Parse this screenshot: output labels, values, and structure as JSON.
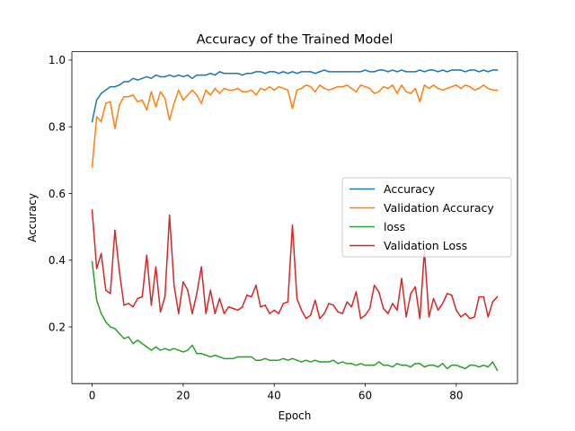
{
  "chart_data": {
    "type": "line",
    "title": "Accuracy of the Trained Model",
    "xlabel": "Epoch",
    "ylabel": "Accuracy",
    "xlim": [
      -4.45,
      93.45
    ],
    "ylim": [
      0.03,
      1.025
    ],
    "xticks": [
      0,
      20,
      40,
      60,
      80
    ],
    "yticks": [
      0.2,
      0.4,
      0.6,
      0.8,
      1.0
    ],
    "ytick_labels": [
      "0.2",
      "0.4",
      "0.6",
      "0.8",
      "1.0"
    ],
    "legend_position": "center-right",
    "grid": false,
    "x": [
      0,
      1,
      2,
      3,
      4,
      5,
      6,
      7,
      8,
      9,
      10,
      11,
      12,
      13,
      14,
      15,
      16,
      17,
      18,
      19,
      20,
      21,
      22,
      23,
      24,
      25,
      26,
      27,
      28,
      29,
      30,
      31,
      32,
      33,
      34,
      35,
      36,
      37,
      38,
      39,
      40,
      41,
      42,
      43,
      44,
      45,
      46,
      47,
      48,
      49,
      50,
      51,
      52,
      53,
      54,
      55,
      56,
      57,
      58,
      59,
      60,
      61,
      62,
      63,
      64,
      65,
      66,
      67,
      68,
      69,
      70,
      71,
      72,
      73,
      74,
      75,
      76,
      77,
      78,
      79,
      80,
      81,
      82,
      83,
      84,
      85,
      86,
      87,
      88,
      89
    ],
    "series": [
      {
        "name": "Accuracy",
        "color": "#1f77b4",
        "values": [
          0.815,
          0.88,
          0.9,
          0.91,
          0.92,
          0.92,
          0.925,
          0.935,
          0.935,
          0.945,
          0.94,
          0.945,
          0.95,
          0.945,
          0.955,
          0.95,
          0.95,
          0.955,
          0.95,
          0.955,
          0.95,
          0.955,
          0.945,
          0.955,
          0.955,
          0.955,
          0.96,
          0.955,
          0.965,
          0.96,
          0.96,
          0.96,
          0.96,
          0.955,
          0.96,
          0.96,
          0.965,
          0.965,
          0.96,
          0.965,
          0.965,
          0.96,
          0.965,
          0.96,
          0.965,
          0.96,
          0.965,
          0.965,
          0.965,
          0.96,
          0.965,
          0.97,
          0.965,
          0.965,
          0.965,
          0.965,
          0.965,
          0.965,
          0.965,
          0.965,
          0.97,
          0.965,
          0.965,
          0.97,
          0.97,
          0.965,
          0.97,
          0.965,
          0.97,
          0.965,
          0.965,
          0.965,
          0.97,
          0.965,
          0.97,
          0.97,
          0.965,
          0.97,
          0.965,
          0.97,
          0.97,
          0.97,
          0.965,
          0.97,
          0.97,
          0.965,
          0.97,
          0.965,
          0.97,
          0.97
        ]
      },
      {
        "name": "Validation Accuracy",
        "color": "#ff7f0e",
        "values": [
          0.68,
          0.83,
          0.815,
          0.87,
          0.875,
          0.795,
          0.865,
          0.89,
          0.89,
          0.895,
          0.875,
          0.88,
          0.85,
          0.905,
          0.86,
          0.905,
          0.885,
          0.82,
          0.87,
          0.91,
          0.88,
          0.895,
          0.91,
          0.895,
          0.87,
          0.91,
          0.895,
          0.915,
          0.9,
          0.915,
          0.91,
          0.91,
          0.915,
          0.905,
          0.905,
          0.91,
          0.895,
          0.915,
          0.91,
          0.92,
          0.91,
          0.92,
          0.915,
          0.91,
          0.855,
          0.91,
          0.915,
          0.925,
          0.92,
          0.905,
          0.925,
          0.915,
          0.91,
          0.915,
          0.92,
          0.92,
          0.925,
          0.915,
          0.905,
          0.925,
          0.92,
          0.915,
          0.9,
          0.905,
          0.92,
          0.915,
          0.925,
          0.9,
          0.925,
          0.905,
          0.9,
          0.915,
          0.875,
          0.925,
          0.915,
          0.925,
          0.915,
          0.91,
          0.915,
          0.92,
          0.925,
          0.915,
          0.925,
          0.92,
          0.91,
          0.915,
          0.925,
          0.915,
          0.91,
          0.91
        ]
      },
      {
        "name": "loss",
        "color": "#2ca02c",
        "values": [
          0.395,
          0.28,
          0.24,
          0.215,
          0.2,
          0.195,
          0.18,
          0.165,
          0.17,
          0.15,
          0.16,
          0.15,
          0.14,
          0.13,
          0.14,
          0.13,
          0.135,
          0.13,
          0.135,
          0.13,
          0.125,
          0.13,
          0.145,
          0.12,
          0.12,
          0.115,
          0.11,
          0.115,
          0.11,
          0.105,
          0.105,
          0.105,
          0.11,
          0.11,
          0.11,
          0.11,
          0.1,
          0.1,
          0.105,
          0.1,
          0.1,
          0.1,
          0.105,
          0.1,
          0.105,
          0.1,
          0.095,
          0.1,
          0.095,
          0.1,
          0.095,
          0.095,
          0.095,
          0.1,
          0.09,
          0.095,
          0.09,
          0.09,
          0.085,
          0.09,
          0.085,
          0.085,
          0.085,
          0.095,
          0.085,
          0.085,
          0.08,
          0.09,
          0.085,
          0.085,
          0.08,
          0.09,
          0.09,
          0.08,
          0.085,
          0.085,
          0.08,
          0.09,
          0.075,
          0.085,
          0.085,
          0.08,
          0.075,
          0.085,
          0.085,
          0.08,
          0.085,
          0.08,
          0.095,
          0.07
        ]
      },
      {
        "name": "Validation Loss",
        "color": "#d62728",
        "values": [
          0.55,
          0.375,
          0.42,
          0.31,
          0.3,
          0.49,
          0.365,
          0.265,
          0.27,
          0.26,
          0.285,
          0.29,
          0.415,
          0.265,
          0.38,
          0.245,
          0.29,
          0.535,
          0.325,
          0.24,
          0.335,
          0.31,
          0.24,
          0.3,
          0.38,
          0.24,
          0.31,
          0.24,
          0.285,
          0.24,
          0.26,
          0.255,
          0.25,
          0.26,
          0.295,
          0.29,
          0.325,
          0.26,
          0.265,
          0.24,
          0.25,
          0.24,
          0.27,
          0.275,
          0.505,
          0.285,
          0.25,
          0.225,
          0.235,
          0.28,
          0.225,
          0.24,
          0.27,
          0.265,
          0.245,
          0.24,
          0.275,
          0.26,
          0.305,
          0.225,
          0.235,
          0.255,
          0.325,
          0.305,
          0.255,
          0.24,
          0.27,
          0.25,
          0.345,
          0.23,
          0.3,
          0.32,
          0.225,
          0.43,
          0.23,
          0.285,
          0.25,
          0.27,
          0.3,
          0.295,
          0.25,
          0.23,
          0.24,
          0.225,
          0.23,
          0.29,
          0.29,
          0.23,
          0.275,
          0.29
        ]
      }
    ]
  }
}
